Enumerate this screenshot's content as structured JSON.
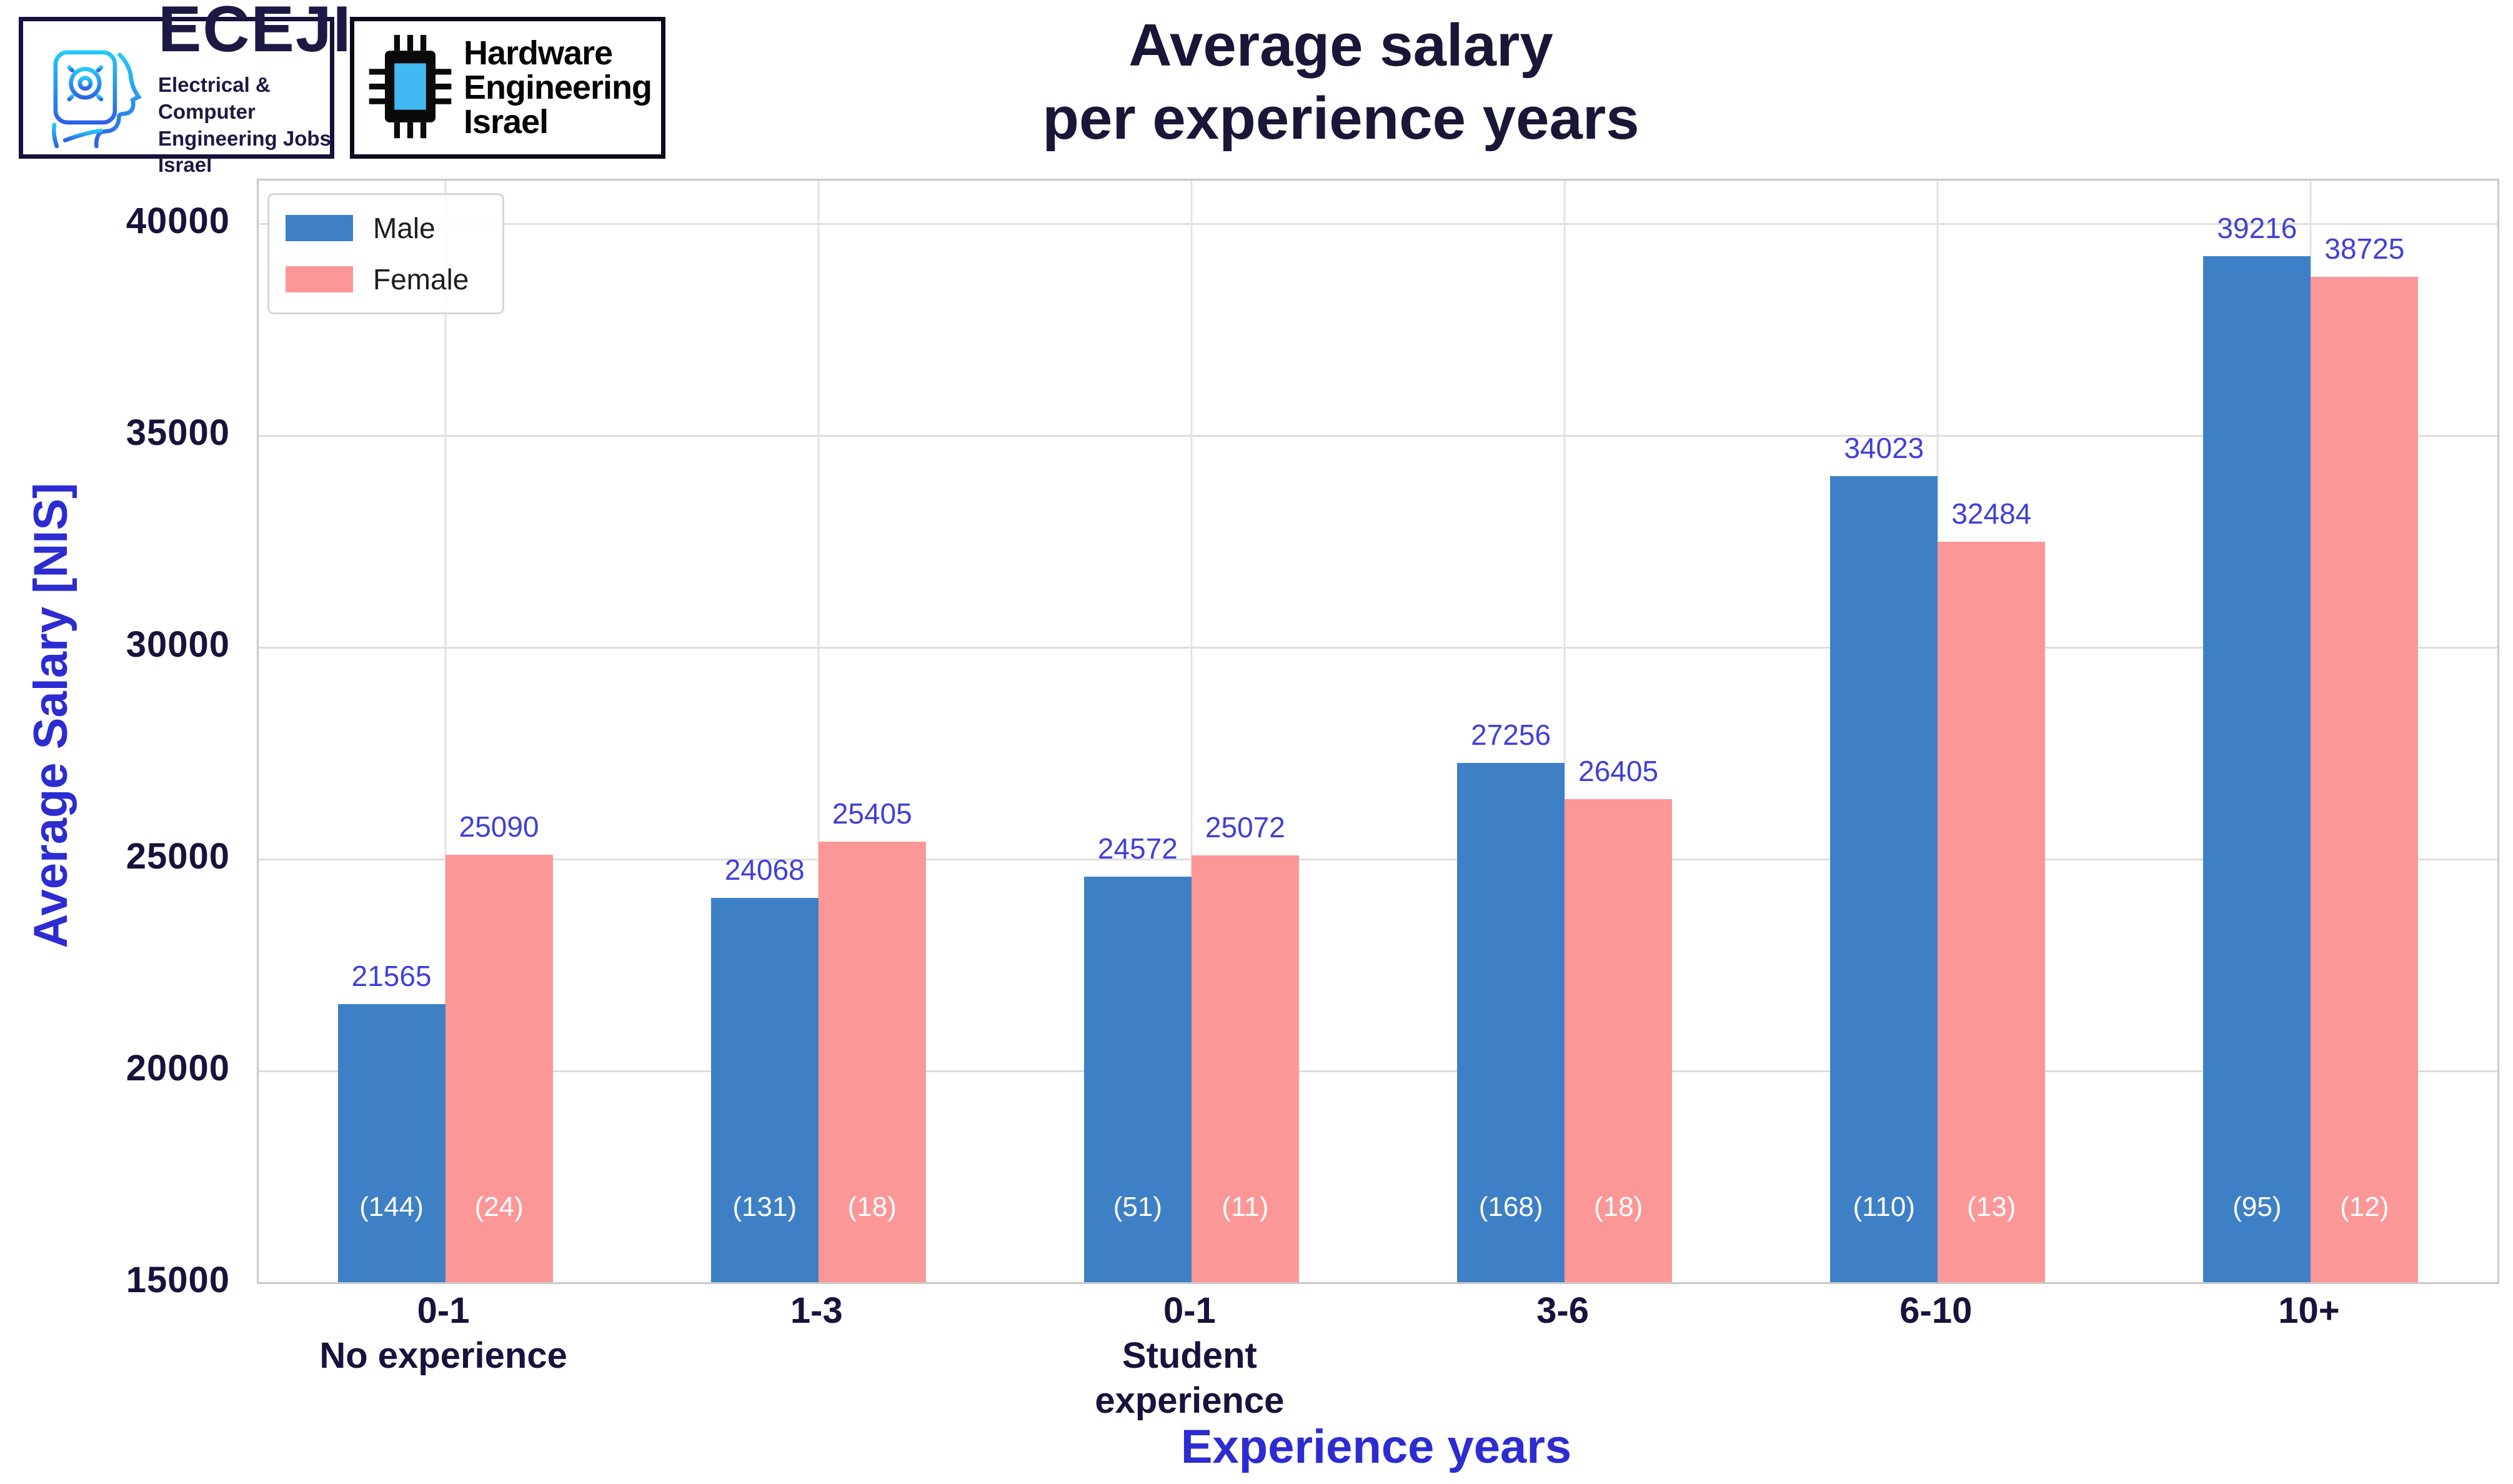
{
  "header": {
    "logo_eceji": {
      "acronym": "ECEJI",
      "tagline_line1": "Electrical  &  Computer",
      "tagline_line2": "Engineering Jobs Israel"
    },
    "logo_hei": {
      "line1": "Hardware",
      "line2": "Engineering",
      "line3": "Israel"
    },
    "title_lines": [
      "Average salary",
      "per experience years"
    ]
  },
  "chart_data": {
    "type": "bar",
    "title": "Average salary per experience years",
    "xlabel": "Experience years",
    "ylabel": "Average Salary [NIS]",
    "ylim": [
      15000,
      41000
    ],
    "yticks": [
      15000,
      20000,
      25000,
      30000,
      35000,
      40000
    ],
    "grid": true,
    "legend_position": "upper left",
    "categories": [
      {
        "tick": "0-1",
        "sublabel": [
          "No experience"
        ]
      },
      {
        "tick": "1-3",
        "sublabel": []
      },
      {
        "tick": "0-1",
        "sublabel": [
          "Student",
          "experience"
        ]
      },
      {
        "tick": "3-6",
        "sublabel": []
      },
      {
        "tick": "6-10",
        "sublabel": []
      },
      {
        "tick": "10+",
        "sublabel": []
      }
    ],
    "series": [
      {
        "name": "Male",
        "color": "#3e80c6",
        "values": [
          21565,
          24068,
          24572,
          27256,
          34023,
          39216
        ],
        "counts": [
          "(144)",
          "(131)",
          "(51)",
          "(168)",
          "(110)",
          "(95)"
        ]
      },
      {
        "name": "Female",
        "color": "#fc9797",
        "values": [
          25090,
          25405,
          25072,
          26405,
          32484,
          38725
        ],
        "counts": [
          "(24)",
          "(18)",
          "(11)",
          "(18)",
          "(13)",
          "(12)"
        ]
      }
    ]
  },
  "colors": {
    "male_bar": "#3e80c6",
    "female_bar": "#fc9797",
    "title_text": "#191738",
    "tick_text": "#16143c",
    "axis_label_text": "#2c2cd2",
    "value_label_text": "#4040d8",
    "count_label_text": "#ffffff",
    "gridline": "#dedede",
    "logo_border": "#15123c",
    "chip_accent": "#41b9f3"
  }
}
